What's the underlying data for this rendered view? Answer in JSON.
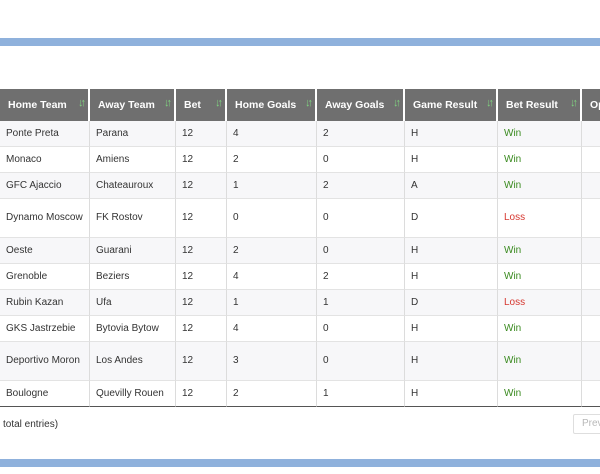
{
  "table": {
    "columns": [
      {
        "label": "Home Team"
      },
      {
        "label": "Away Team"
      },
      {
        "label": "Bet"
      },
      {
        "label": "Home Goals"
      },
      {
        "label": "Away Goals"
      },
      {
        "label": "Game Result"
      },
      {
        "label": "Bet Result"
      },
      {
        "label": "Op"
      }
    ],
    "sort_icon": "sort-arrows-icon",
    "rows": [
      {
        "home": "Ponte Preta",
        "away": "Parana",
        "bet": "12",
        "home_goals": "4",
        "away_goals": "2",
        "game_result": "H",
        "bet_result": "Win"
      },
      {
        "home": "Monaco",
        "away": "Amiens",
        "bet": "12",
        "home_goals": "2",
        "away_goals": "0",
        "game_result": "H",
        "bet_result": "Win"
      },
      {
        "home": "GFC Ajaccio",
        "away": "Chateauroux",
        "bet": "12",
        "home_goals": "1",
        "away_goals": "2",
        "game_result": "A",
        "bet_result": "Win"
      },
      {
        "home": "Dynamo Moscow",
        "away": "FK Rostov",
        "bet": "12",
        "home_goals": "0",
        "away_goals": "0",
        "game_result": "D",
        "bet_result": "Loss"
      },
      {
        "home": "Oeste",
        "away": "Guarani",
        "bet": "12",
        "home_goals": "2",
        "away_goals": "0",
        "game_result": "H",
        "bet_result": "Win"
      },
      {
        "home": "Grenoble",
        "away": "Beziers",
        "bet": "12",
        "home_goals": "4",
        "away_goals": "2",
        "game_result": "H",
        "bet_result": "Win"
      },
      {
        "home": "Rubin Kazan",
        "away": "Ufa",
        "bet": "12",
        "home_goals": "1",
        "away_goals": "1",
        "game_result": "D",
        "bet_result": "Loss"
      },
      {
        "home": "GKS Jastrzebie",
        "away": "Bytovia Bytow",
        "bet": "12",
        "home_goals": "4",
        "away_goals": "0",
        "game_result": "H",
        "bet_result": "Win"
      },
      {
        "home": "Deportivo Moron",
        "away": "Los Andes",
        "bet": "12",
        "home_goals": "3",
        "away_goals": "0",
        "game_result": "H",
        "bet_result": "Win"
      },
      {
        "home": "Boulogne",
        "away": "Quevilly Rouen",
        "bet": "12",
        "home_goals": "2",
        "away_goals": "1",
        "game_result": "H",
        "bet_result": "Win"
      }
    ]
  },
  "footer": {
    "info": "total entries)",
    "prev_label": "Prev"
  },
  "colors": {
    "header_bg": "#6f6f6f",
    "band": "#8fb1dc",
    "win": "#3a8a1f",
    "loss": "#d6372f",
    "sort_icon": "#7fd17f"
  }
}
